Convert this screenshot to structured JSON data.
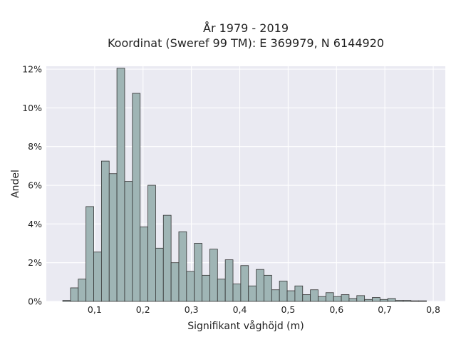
{
  "chart_data": {
    "type": "bar",
    "title": "År 1979 - 2019",
    "subtitle": "Koordinat (Sweref 99 TM): E 369979, N 6144920",
    "xlabel": "Signifikant våghöjd (m)",
    "ylabel": "Andel",
    "xlim": [
      0.0,
      0.825
    ],
    "ylim": [
      0,
      0.1215
    ],
    "x_ticks": [
      {
        "value": 0.1,
        "label": "0,1"
      },
      {
        "value": 0.2,
        "label": "0,2"
      },
      {
        "value": 0.3,
        "label": "0,3"
      },
      {
        "value": 0.4,
        "label": "0,4"
      },
      {
        "value": 0.5,
        "label": "0,5"
      },
      {
        "value": 0.6,
        "label": "0,6"
      },
      {
        "value": 0.7,
        "label": "0,7"
      },
      {
        "value": 0.8,
        "label": "0,8"
      }
    ],
    "y_ticks": [
      {
        "value": 0.0,
        "label": "0%"
      },
      {
        "value": 0.02,
        "label": "2%"
      },
      {
        "value": 0.04,
        "label": "4%"
      },
      {
        "value": 0.06,
        "label": "6%"
      },
      {
        "value": 0.08,
        "label": "8%"
      },
      {
        "value": 0.1,
        "label": "10%"
      },
      {
        "value": 0.12,
        "label": "12%"
      }
    ],
    "grid": true,
    "bin_edges": [
      0.034,
      0.05,
      0.066,
      0.082,
      0.098,
      0.114,
      0.13,
      0.146,
      0.162,
      0.178,
      0.194,
      0.21,
      0.226,
      0.242,
      0.258,
      0.274,
      0.29,
      0.306,
      0.322,
      0.338,
      0.354,
      0.37,
      0.386,
      0.402,
      0.418,
      0.434,
      0.45,
      0.466,
      0.482,
      0.498,
      0.514,
      0.53,
      0.546,
      0.562,
      0.578,
      0.594,
      0.61,
      0.626,
      0.642,
      0.658,
      0.674,
      0.69,
      0.706,
      0.722,
      0.738,
      0.754,
      0.77,
      0.786
    ],
    "values": [
      0.0005,
      0.007,
      0.0115,
      0.049,
      0.0255,
      0.0725,
      0.066,
      0.1205,
      0.062,
      0.1075,
      0.0385,
      0.06,
      0.0275,
      0.0445,
      0.02,
      0.036,
      0.0155,
      0.03,
      0.0135,
      0.027,
      0.0115,
      0.0215,
      0.009,
      0.0185,
      0.008,
      0.0165,
      0.0135,
      0.006,
      0.0105,
      0.0055,
      0.008,
      0.0035,
      0.006,
      0.0025,
      0.0045,
      0.0025,
      0.0035,
      0.0015,
      0.003,
      0.001,
      0.002,
      0.001,
      0.0015,
      0.0005,
      0.0005,
      0.0003,
      0.0003
    ]
  }
}
